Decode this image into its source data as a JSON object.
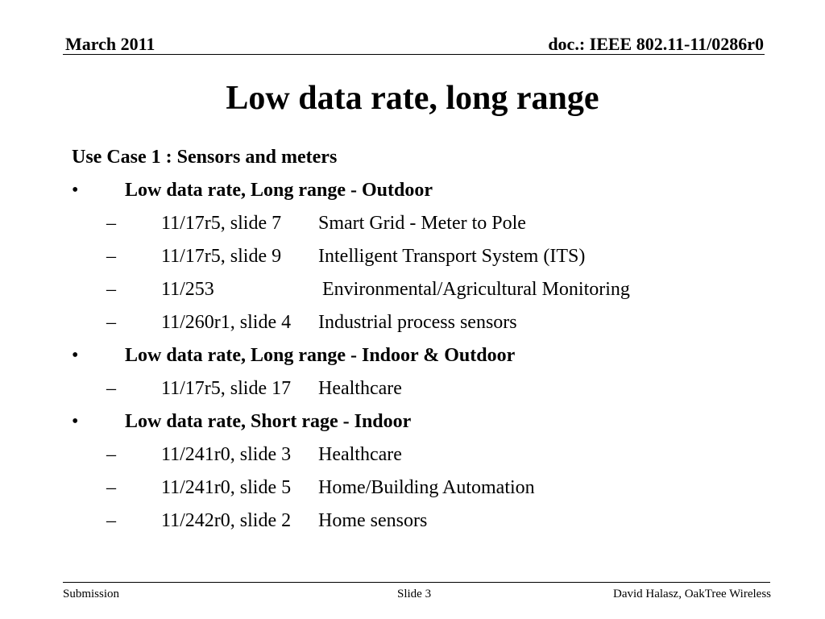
{
  "header": {
    "date": "March 2011",
    "doc_id": "doc.: IEEE 802.11-11/0286r0"
  },
  "slide": {
    "title": "Low data rate, long range",
    "use_case": "Use Case 1 : Sensors and meters",
    "groups": [
      {
        "bullet": "•",
        "heading": "Low data rate, Long range - Outdoor",
        "items": [
          {
            "dash": "–",
            "ref": "11/17r5, slide 7",
            "desc": "Smart Grid - Meter to Pole"
          },
          {
            "dash": "–",
            "ref": "11/17r5, slide 9",
            "desc": "Intelligent Transport System (ITS)"
          },
          {
            "dash": "–",
            "ref": "11/253",
            "desc": "Environmental/Agricultural Monitoring"
          },
          {
            "dash": "–",
            "ref": "11/260r1, slide 4",
            "desc": "Industrial process sensors"
          }
        ]
      },
      {
        "bullet": "•",
        "heading": "Low data rate, Long range - Indoor & Outdoor",
        "items": [
          {
            "dash": "–",
            "ref": "11/17r5, slide 17",
            "desc": "Healthcare"
          }
        ]
      },
      {
        "bullet": "•",
        "heading": "Low data rate, Short rage - Indoor",
        "items": [
          {
            "dash": "–",
            "ref": "11/241r0, slide 3",
            "desc": "Healthcare"
          },
          {
            "dash": "–",
            "ref": "11/241r0, slide 5",
            "desc": "Home/Building Automation"
          },
          {
            "dash": "–",
            "ref": "11/242r0, slide 2",
            "desc": "Home sensors"
          }
        ]
      }
    ]
  },
  "footer": {
    "left": "Submission",
    "center": "Slide 3",
    "right": "David Halasz, OakTree Wireless"
  }
}
